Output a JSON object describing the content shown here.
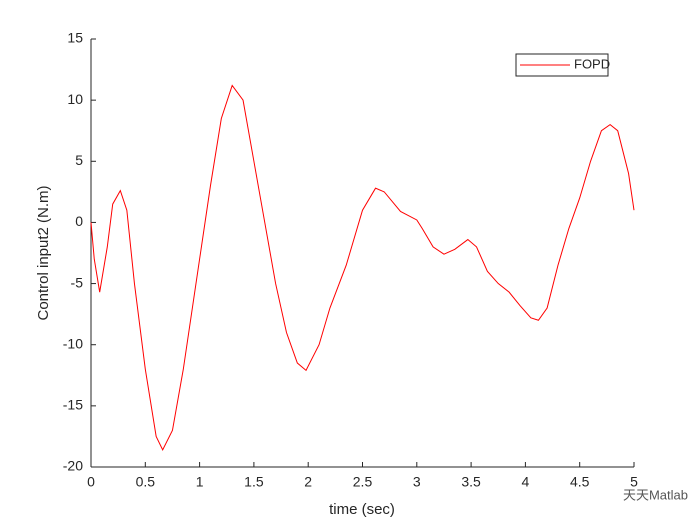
{
  "chart_data": {
    "type": "line",
    "xlabel": "time (sec)",
    "ylabel": "Control input2 (N.m)",
    "x": [
      0,
      0.03,
      0.08,
      0.15,
      0.2,
      0.27,
      0.33,
      0.4,
      0.5,
      0.6,
      0.66,
      0.75,
      0.85,
      1.0,
      1.1,
      1.2,
      1.3,
      1.4,
      1.5,
      1.6,
      1.7,
      1.8,
      1.9,
      1.98,
      2.1,
      2.2,
      2.35,
      2.5,
      2.62,
      2.7,
      2.85,
      3.0,
      3.05,
      3.15,
      3.25,
      3.35,
      3.47,
      3.55,
      3.65,
      3.75,
      3.85,
      3.95,
      4.05,
      4.12,
      4.2,
      4.3,
      4.4,
      4.5,
      4.6,
      4.7,
      4.78,
      4.85,
      4.95,
      5.0
    ],
    "series": [
      {
        "name": "FOPD",
        "color": "#ff0000",
        "values": [
          0,
          -3,
          -5.7,
          -2,
          1.5,
          2.6,
          1,
          -5,
          -12,
          -17.5,
          -18.6,
          -17,
          -12,
          -3,
          3,
          8.5,
          11.2,
          10,
          5,
          0,
          -5,
          -9,
          -11.5,
          -12.1,
          -10,
          -7,
          -3.5,
          1,
          2.8,
          2.5,
          0.9,
          0.2,
          -0.5,
          -2,
          -2.6,
          -2.2,
          -1.4,
          -2,
          -4,
          -5,
          -5.7,
          -6.8,
          -7.8,
          -8,
          -7,
          -3.5,
          -0.5,
          2,
          5,
          7.5,
          8,
          7.5,
          4,
          1
        ]
      }
    ],
    "xlim": [
      0,
      5
    ],
    "xticks": [
      0,
      0.5,
      1,
      1.5,
      2,
      2.5,
      3,
      3.5,
      4,
      4.5,
      5
    ],
    "ylim": [
      -20,
      15
    ],
    "yticks": [
      -20,
      -15,
      -10,
      -5,
      0,
      5,
      10,
      15
    ],
    "legend": "northeast",
    "grid": false
  },
  "watermark": "天天Matlab"
}
